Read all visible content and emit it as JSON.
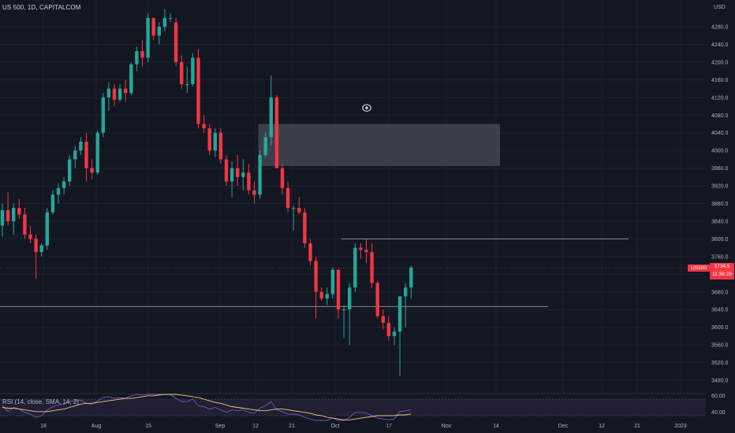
{
  "header": {
    "title": "US 500, 1D, CAPITALCOM"
  },
  "rsi": {
    "label": "RSI (14, close, SMA, 14, 2)",
    "levels": [
      "60.00",
      "40.00"
    ],
    "colors": {
      "rsi": "#7e57c2",
      "sma": "#f0c77e",
      "band": "#2a2540"
    }
  },
  "price_axis": {
    "currency": "USD",
    "ticks": [
      4280,
      4240,
      4200,
      4160,
      4120,
      4080,
      4040,
      4000,
      3960,
      3920,
      3880,
      3840,
      3800,
      3760,
      3720,
      3680,
      3640,
      3600,
      3560,
      3520,
      3480
    ],
    "tick_labels": [
      "4280.0",
      "4240.0",
      "4200.0",
      "4160.0",
      "4120.0",
      "4080.0",
      "4040.0",
      "4000.0",
      "3960.0",
      "3920.0",
      "3880.0",
      "3840.0",
      "3800.0",
      "3760.0",
      "3720.0",
      "3680.0",
      "3640.0",
      "3600.0",
      "3560.0",
      "3520.0",
      "3480.0"
    ]
  },
  "time_axis": {
    "labels": [
      "18",
      "Aug",
      "15",
      "Sep",
      "12",
      "21",
      "Oct",
      "17",
      "Nov",
      "14",
      "Dec",
      "12",
      "21",
      "2023"
    ]
  },
  "current_price": {
    "symbol_badge": "US500",
    "price": "3734.5",
    "countdown": "11:36:29",
    "value": 3734.5,
    "color": "#f23645"
  },
  "colors": {
    "up": "#26a69a",
    "down": "#f23645",
    "background": "#131722",
    "grid": "#1e222d",
    "zone": "#4a4d57"
  },
  "chart_data": {
    "type": "candlestick",
    "title": "US 500, 1D, CAPITALCOM",
    "ylabel": "USD",
    "ylim": [
      3460,
      4320
    ],
    "dates": [
      "Jul 15",
      "Jul 18",
      "Jul 19",
      "Jul 20",
      "Jul 21",
      "Jul 22",
      "Jul 25",
      "Jul 26",
      "Jul 27",
      "Jul 28",
      "Jul 29",
      "Aug 1",
      "Aug 2",
      "Aug 3",
      "Aug 4",
      "Aug 5",
      "Aug 8",
      "Aug 9",
      "Aug 10",
      "Aug 11",
      "Aug 12",
      "Aug 15",
      "Aug 16",
      "Aug 17",
      "Aug 18",
      "Aug 19",
      "Aug 22",
      "Aug 23",
      "Aug 24",
      "Aug 25",
      "Aug 26",
      "Aug 29",
      "Aug 30",
      "Aug 31",
      "Sep 1",
      "Sep 2",
      "Sep 5",
      "Sep 6",
      "Sep 7",
      "Sep 8",
      "Sep 9",
      "Sep 12",
      "Sep 13",
      "Sep 14",
      "Sep 15",
      "Sep 16",
      "Sep 19",
      "Sep 20",
      "Sep 21",
      "Sep 22",
      "Sep 23",
      "Sep 26",
      "Sep 27",
      "Sep 28",
      "Sep 29",
      "Sep 30",
      "Oct 3",
      "Oct 4",
      "Oct 5",
      "Oct 6",
      "Oct 7",
      "Oct 10",
      "Oct 11",
      "Oct 12",
      "Oct 13",
      "Oct 14",
      "Oct 17",
      "Oct 18",
      "Oct 19",
      "Oct 20",
      "Oct 21",
      "Oct 24",
      "Oct 25",
      "Oct 26"
    ],
    "ohlc": [
      [
        3830,
        3880,
        3805,
        3865
      ],
      [
        3865,
        3905,
        3830,
        3840
      ],
      [
        3840,
        3880,
        3810,
        3870
      ],
      [
        3870,
        3890,
        3845,
        3855
      ],
      [
        3855,
        3870,
        3800,
        3810
      ],
      [
        3810,
        3830,
        3790,
        3800
      ],
      [
        3800,
        3810,
        3710,
        3770
      ],
      [
        3770,
        3790,
        3760,
        3785
      ],
      [
        3785,
        3870,
        3775,
        3860
      ],
      [
        3860,
        3910,
        3855,
        3900
      ],
      [
        3900,
        3925,
        3880,
        3915
      ],
      [
        3915,
        3940,
        3900,
        3930
      ],
      [
        3930,
        3990,
        3920,
        3980
      ],
      [
        3980,
        4010,
        3960,
        4000
      ],
      [
        4000,
        4030,
        3990,
        4020
      ],
      [
        4020,
        4040,
        3930,
        3960
      ],
      [
        3960,
        3980,
        3935,
        3950
      ],
      [
        3950,
        4045,
        3945,
        4040
      ],
      [
        4040,
        4130,
        4030,
        4120
      ],
      [
        4120,
        4155,
        4090,
        4140
      ],
      [
        4140,
        4150,
        4100,
        4115
      ],
      [
        4115,
        4150,
        4110,
        4140
      ],
      [
        4140,
        4160,
        4110,
        4130
      ],
      [
        4130,
        4200,
        4125,
        4195
      ],
      [
        4195,
        4235,
        4180,
        4225
      ],
      [
        4225,
        4250,
        4190,
        4210
      ],
      [
        4210,
        4310,
        4200,
        4300
      ],
      [
        4300,
        4300,
        4250,
        4260
      ],
      [
        4260,
        4290,
        4240,
        4280
      ],
      [
        4280,
        4320,
        4270,
        4300
      ],
      [
        4300,
        4310,
        4290,
        4300
      ],
      [
        4290,
        4300,
        4190,
        4200
      ],
      [
        4200,
        4215,
        4140,
        4150
      ],
      [
        4150,
        4190,
        4130,
        4150
      ],
      [
        4150,
        4220,
        4145,
        4210
      ],
      [
        4210,
        4230,
        4050,
        4060
      ],
      [
        4060,
        4080,
        4040,
        4050
      ],
      [
        4050,
        4060,
        3990,
        4000
      ],
      [
        4000,
        4050,
        3985,
        4040
      ],
      [
        4040,
        4050,
        3970,
        3980
      ],
      [
        3980,
        3990,
        3920,
        3930
      ],
      [
        3930,
        3975,
        3895,
        3960
      ],
      [
        3960,
        3990,
        3920,
        3940
      ],
      [
        3940,
        3980,
        3910,
        3950
      ],
      [
        3950,
        3970,
        3900,
        3910
      ],
      [
        3910,
        3930,
        3880,
        3900
      ],
      [
        3900,
        4000,
        3890,
        3990
      ],
      [
        3990,
        4040,
        3985,
        4030
      ],
      [
        4030,
        4170,
        4010,
        4120
      ],
      [
        4120,
        4125,
        3960,
        3960
      ],
      [
        3960,
        3970,
        3900,
        3915
      ],
      [
        3915,
        3930,
        3860,
        3870
      ],
      [
        3870,
        3875,
        3820,
        3870
      ],
      [
        3870,
        3895,
        3855,
        3860
      ],
      [
        3860,
        3870,
        3780,
        3790
      ],
      [
        3790,
        3800,
        3740,
        3750
      ],
      [
        3750,
        3760,
        3620,
        3680
      ],
      [
        3680,
        3690,
        3660,
        3665
      ],
      [
        3665,
        3690,
        3650,
        3675
      ],
      [
        3675,
        3735,
        3665,
        3730
      ],
      [
        3730,
        3730,
        3620,
        3640
      ],
      [
        3640,
        3650,
        3575,
        3640
      ],
      [
        3640,
        3700,
        3560,
        3690
      ],
      [
        3690,
        3790,
        3680,
        3780
      ],
      [
        3780,
        3790,
        3755,
        3775
      ],
      [
        3775,
        3800,
        3745,
        3770
      ],
      [
        3770,
        3790,
        3690,
        3700
      ],
      [
        3700,
        3705,
        3620,
        3625
      ],
      [
        3625,
        3640,
        3595,
        3610
      ],
      [
        3610,
        3625,
        3570,
        3580
      ],
      [
        3580,
        3600,
        3560,
        3590
      ],
      [
        3590,
        3670,
        3490,
        3670
      ],
      [
        3670,
        3700,
        3600,
        3690
      ],
      [
        3690,
        3740,
        3665,
        3735
      ]
    ],
    "horizontal_lines": [
      {
        "price": 3800
      },
      {
        "price": 3647
      }
    ],
    "zone": {
      "price_top": 4060,
      "price_bottom": 3965
    },
    "rsi_series": [
      52,
      45,
      50,
      48,
      44,
      42,
      38,
      40,
      47,
      51,
      53,
      54,
      57,
      58,
      59,
      55,
      54,
      58,
      62,
      63,
      61,
      62,
      61,
      64,
      66,
      65,
      68,
      66,
      67,
      68,
      68,
      61,
      57,
      57,
      60,
      52,
      51,
      48,
      50,
      47,
      44,
      47,
      46,
      47,
      44,
      43,
      49,
      52,
      57,
      47,
      45,
      42,
      42,
      41,
      38,
      36,
      33,
      32,
      33,
      37,
      34,
      34,
      38,
      44,
      44,
      43,
      40,
      37,
      36,
      35,
      36,
      45,
      46,
      47
    ],
    "rsi_sma": [
      50,
      49,
      49,
      48,
      47,
      46,
      45,
      45,
      45,
      46,
      47,
      48,
      50,
      52,
      54,
      55,
      55,
      56,
      57,
      58,
      59,
      60,
      61,
      61,
      62,
      63,
      64,
      64,
      65,
      66,
      66,
      66,
      65,
      64,
      63,
      62,
      60,
      58,
      56,
      55,
      53,
      51,
      50,
      49,
      48,
      47,
      46,
      46,
      47,
      48,
      48,
      47,
      46,
      45,
      44,
      43,
      41,
      40,
      38,
      37,
      36,
      35,
      35,
      36,
      37,
      38,
      39,
      40,
      40,
      40,
      40,
      41,
      41,
      42
    ]
  }
}
